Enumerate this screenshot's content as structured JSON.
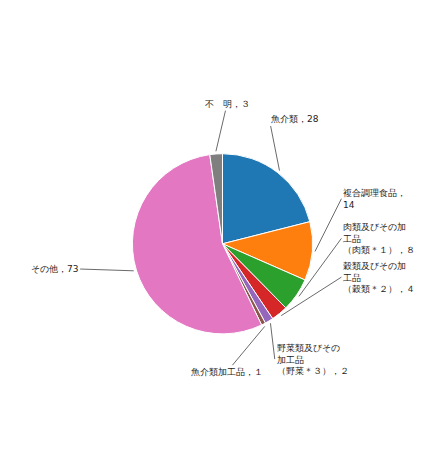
{
  "chart_data": {
    "type": "pie",
    "categories": [
      "魚介類，28",
      "複合調理食品，\n14",
      "肉類及びその加\n工品\n（肉類＊１），８",
      "穀類及びその加\n工品\n（穀類＊２），４",
      "野菜類及びその\n加工品\n（野菜＊３），２",
      "魚介類加工品，１",
      "その他，73",
      "不　明，３"
    ],
    "values": [
      28,
      14,
      8,
      4,
      2,
      1,
      73,
      3
    ]
  }
}
